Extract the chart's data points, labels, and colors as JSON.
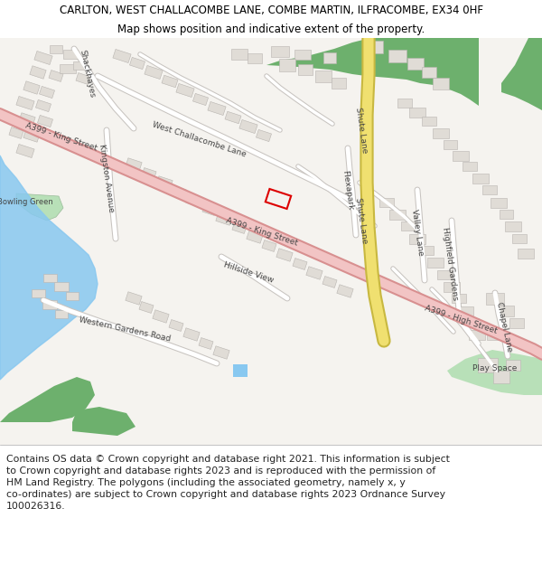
{
  "title_line1": "CARLTON, WEST CHALLACOMBE LANE, COMBE MARTIN, ILFRACOMBE, EX34 0HF",
  "title_line2": "Map shows position and indicative extent of the property.",
  "footer_text": "Contains OS data © Crown copyright and database right 2021. This information is subject\nto Crown copyright and database rights 2023 and is reproduced with the permission of\nHM Land Registry. The polygons (including the associated geometry, namely x, y\nco-ordinates) are subject to Crown copyright and database rights 2023 Ordnance Survey\n100026316.",
  "title_fontsize": 8.5,
  "subtitle_fontsize": 8.5,
  "footer_fontsize": 7.8,
  "bg_color": "#ffffff",
  "map_bg": "#f5f3ef",
  "road_a399_color": "#f2c4c4",
  "road_a399_edge": "#d89090",
  "road_yellow_color": "#f0e070",
  "road_yellow_edge": "#c8b840",
  "road_minor_color": "#ffffff",
  "road_minor_edge": "#cccccc",
  "green_area_color": "#6db06d",
  "green_light_color": "#b8e0b8",
  "water_color": "#88c8f0",
  "property_rect_color": "#dd0000",
  "building_color": "#e0dcd6",
  "building_edge": "#b8b4b0"
}
